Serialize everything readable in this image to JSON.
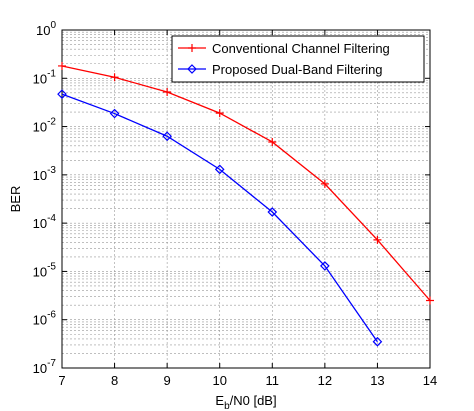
{
  "chart_data": {
    "type": "line",
    "x_label": "E_b/N0 [dB]",
    "y_label": "BER",
    "x": [
      7,
      8,
      9,
      10,
      11,
      12,
      13,
      14
    ],
    "series": [
      {
        "name": "Conventional Channel Filtering",
        "color": "#ff0000",
        "marker": "plus",
        "values": [
          0.18,
          0.105,
          0.052,
          0.019,
          0.0048,
          0.00065,
          4.5e-05,
          2.5e-06
        ]
      },
      {
        "name": "Proposed Dual-Band Filtering",
        "color": "#0000ff",
        "marker": "diamond",
        "values": [
          0.047,
          0.0186,
          0.0063,
          0.0013,
          0.00017,
          1.3e-05,
          3.5e-07,
          null
        ]
      }
    ],
    "xlim": [
      7,
      14
    ],
    "xticks": [
      7,
      8,
      9,
      10,
      11,
      12,
      13,
      14
    ],
    "ylim": [
      1e-07,
      1
    ],
    "log_y": true,
    "grid": true,
    "minor_grid": true,
    "legend": "upper right",
    "yticks": [
      {
        "value": 1,
        "label": "10^0"
      },
      {
        "value": 0.1,
        "label": "10^-1"
      },
      {
        "value": 0.01,
        "label": "10^-2"
      },
      {
        "value": 0.001,
        "label": "10^-3"
      },
      {
        "value": 0.0001,
        "label": "10^-4"
      },
      {
        "value": 1e-05,
        "label": "10^-5"
      },
      {
        "value": 1e-06,
        "label": "10^-6"
      },
      {
        "value": 1e-07,
        "label": "10^-7"
      }
    ]
  }
}
